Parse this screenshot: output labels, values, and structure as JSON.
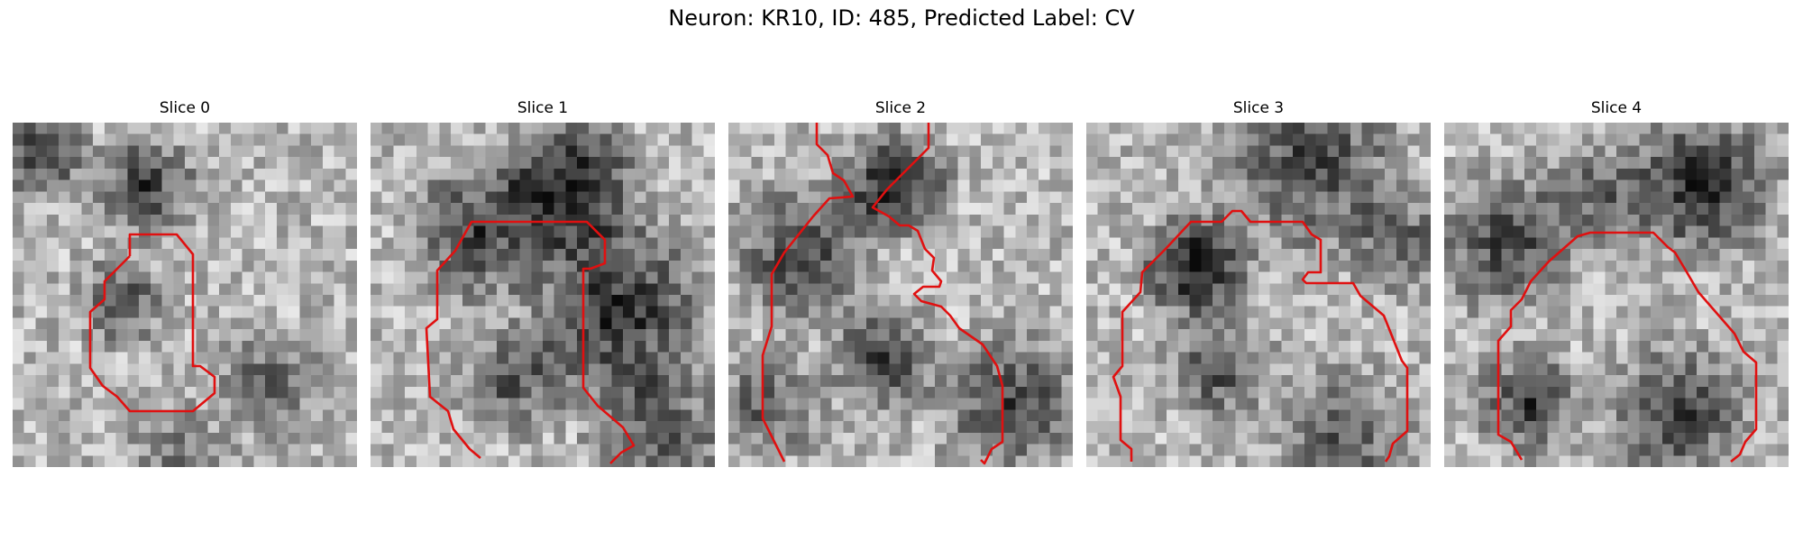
{
  "figure": {
    "title": "Neuron: KR10, ID: 485, Predicted Label: CV"
  },
  "colors": {
    "contour": "#e01010",
    "image_colormap": "grayscale"
  },
  "panels": [
    {
      "title": "Slice 0"
    },
    {
      "title": "Slice 1"
    },
    {
      "title": "Slice 2"
    },
    {
      "title": "Slice 3"
    },
    {
      "title": "Slice 4"
    }
  ]
}
